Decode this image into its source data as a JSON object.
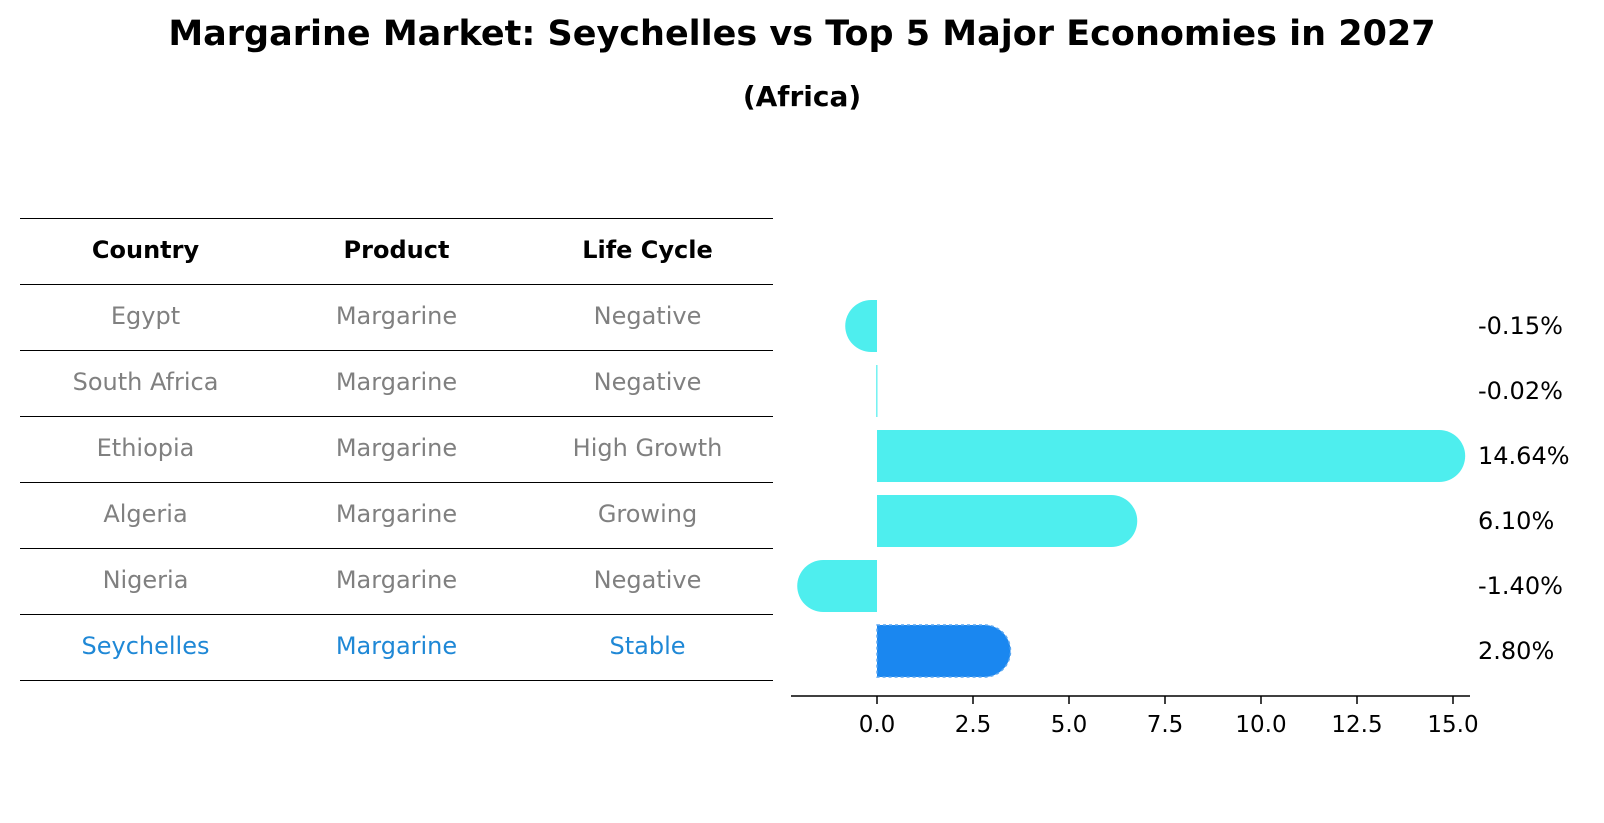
{
  "title": "Margarine Market: Seychelles vs Top 5 Major Economies in 2027",
  "subtitle": "(Africa)",
  "table": {
    "headers": [
      "Country",
      "Product",
      "Life Cycle"
    ],
    "rows": [
      {
        "country": "Egypt",
        "product": "Margarine",
        "life_cycle": "Negative"
      },
      {
        "country": "South Africa",
        "product": "Margarine",
        "life_cycle": "Negative"
      },
      {
        "country": "Ethiopia",
        "product": "Margarine",
        "life_cycle": "High Growth"
      },
      {
        "country": "Algeria",
        "product": "Margarine",
        "life_cycle": "Growing"
      },
      {
        "country": "Nigeria",
        "product": "Margarine",
        "life_cycle": "Negative"
      },
      {
        "country": "Seychelles",
        "product": "Margarine",
        "life_cycle": "Stable"
      }
    ]
  },
  "chart_data": {
    "type": "bar",
    "orientation": "horizontal",
    "categories": [
      "Egypt",
      "South Africa",
      "Ethiopia",
      "Algeria",
      "Nigeria",
      "Seychelles"
    ],
    "values": [
      -0.15,
      -0.02,
      14.64,
      6.1,
      -1.4,
      2.8
    ],
    "value_labels": [
      "-0.15%",
      "-0.02%",
      "14.64%",
      "6.10%",
      "-1.40%",
      "2.80%"
    ],
    "xlim": [
      -2.2,
      15.5
    ],
    "xticks": [
      0.0,
      2.5,
      5.0,
      7.5,
      10.0,
      12.5,
      15.0
    ],
    "xtick_labels": [
      "0.0",
      "2.5",
      "5.0",
      "7.5",
      "10.0",
      "12.5",
      "15.0"
    ],
    "highlight": "Seychelles",
    "colors": {
      "default": "#4eeeee",
      "highlight": "#1a87f0",
      "highlight_text": "#1f88d6",
      "muted_text": "#808080"
    },
    "grid": false
  }
}
